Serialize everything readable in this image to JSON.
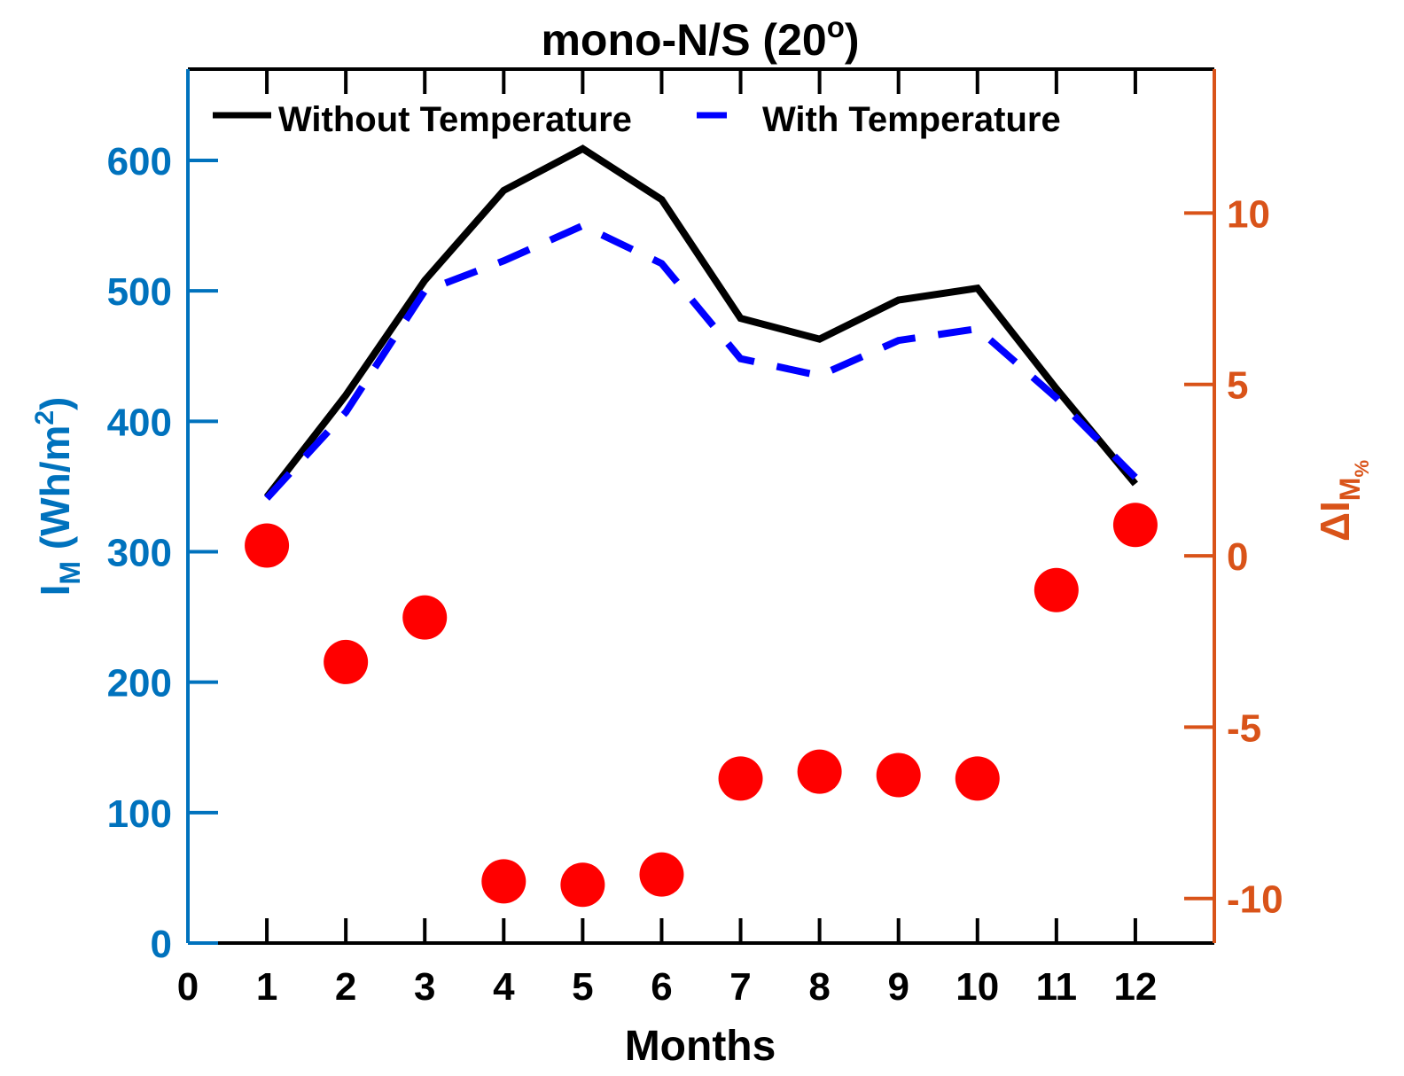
{
  "chart_data": {
    "type": "line",
    "title": "mono-N/S (20",
    "title_sup": "o",
    "title_close": ")",
    "xlabel": "Months",
    "ylabel_left": {
      "main": "I",
      "sub": "M",
      "unit_open": " (Wh/m",
      "unit_sup": "2",
      "unit_close": ")"
    },
    "ylabel_right": {
      "main": "ΔI",
      "sub": "M",
      "subsub": "%"
    },
    "x": [
      1,
      2,
      3,
      4,
      5,
      6,
      7,
      8,
      9,
      10,
      11,
      12
    ],
    "xlim": [
      0,
      13
    ],
    "xticks": [
      0,
      1,
      2,
      3,
      4,
      5,
      6,
      7,
      8,
      9,
      10,
      11,
      12
    ],
    "ylim_left": [
      0,
      670
    ],
    "yticks_left": [
      0,
      100,
      200,
      300,
      400,
      500,
      600
    ],
    "ylim_right": [
      -11.3,
      14.2
    ],
    "yticks_right": [
      -10,
      -5,
      0,
      5,
      10
    ],
    "series": [
      {
        "name": "Without Temperature",
        "axis": "left",
        "style": "solid",
        "color": "#000000",
        "values": [
          342,
          420,
          508,
          577,
          609,
          570,
          479,
          463,
          493,
          502,
          425,
          352
        ]
      },
      {
        "name": "With Temperature",
        "axis": "left",
        "style": "dashed",
        "color": "#0000ff",
        "values": [
          341,
          407,
          500,
          523,
          550,
          521,
          448,
          435,
          462,
          471,
          418,
          357
        ]
      },
      {
        "axis": "right",
        "style": "markers",
        "color": "#ff0000",
        "values": [
          0.3,
          -3.1,
          -1.8,
          -9.5,
          -9.6,
          -9.3,
          -6.5,
          -6.3,
          -6.4,
          -6.5,
          -1.0,
          0.9
        ]
      }
    ],
    "legend": "top",
    "grid": false,
    "colors": {
      "left_axis": "#0072bd",
      "right_axis": "#d95319"
    }
  }
}
